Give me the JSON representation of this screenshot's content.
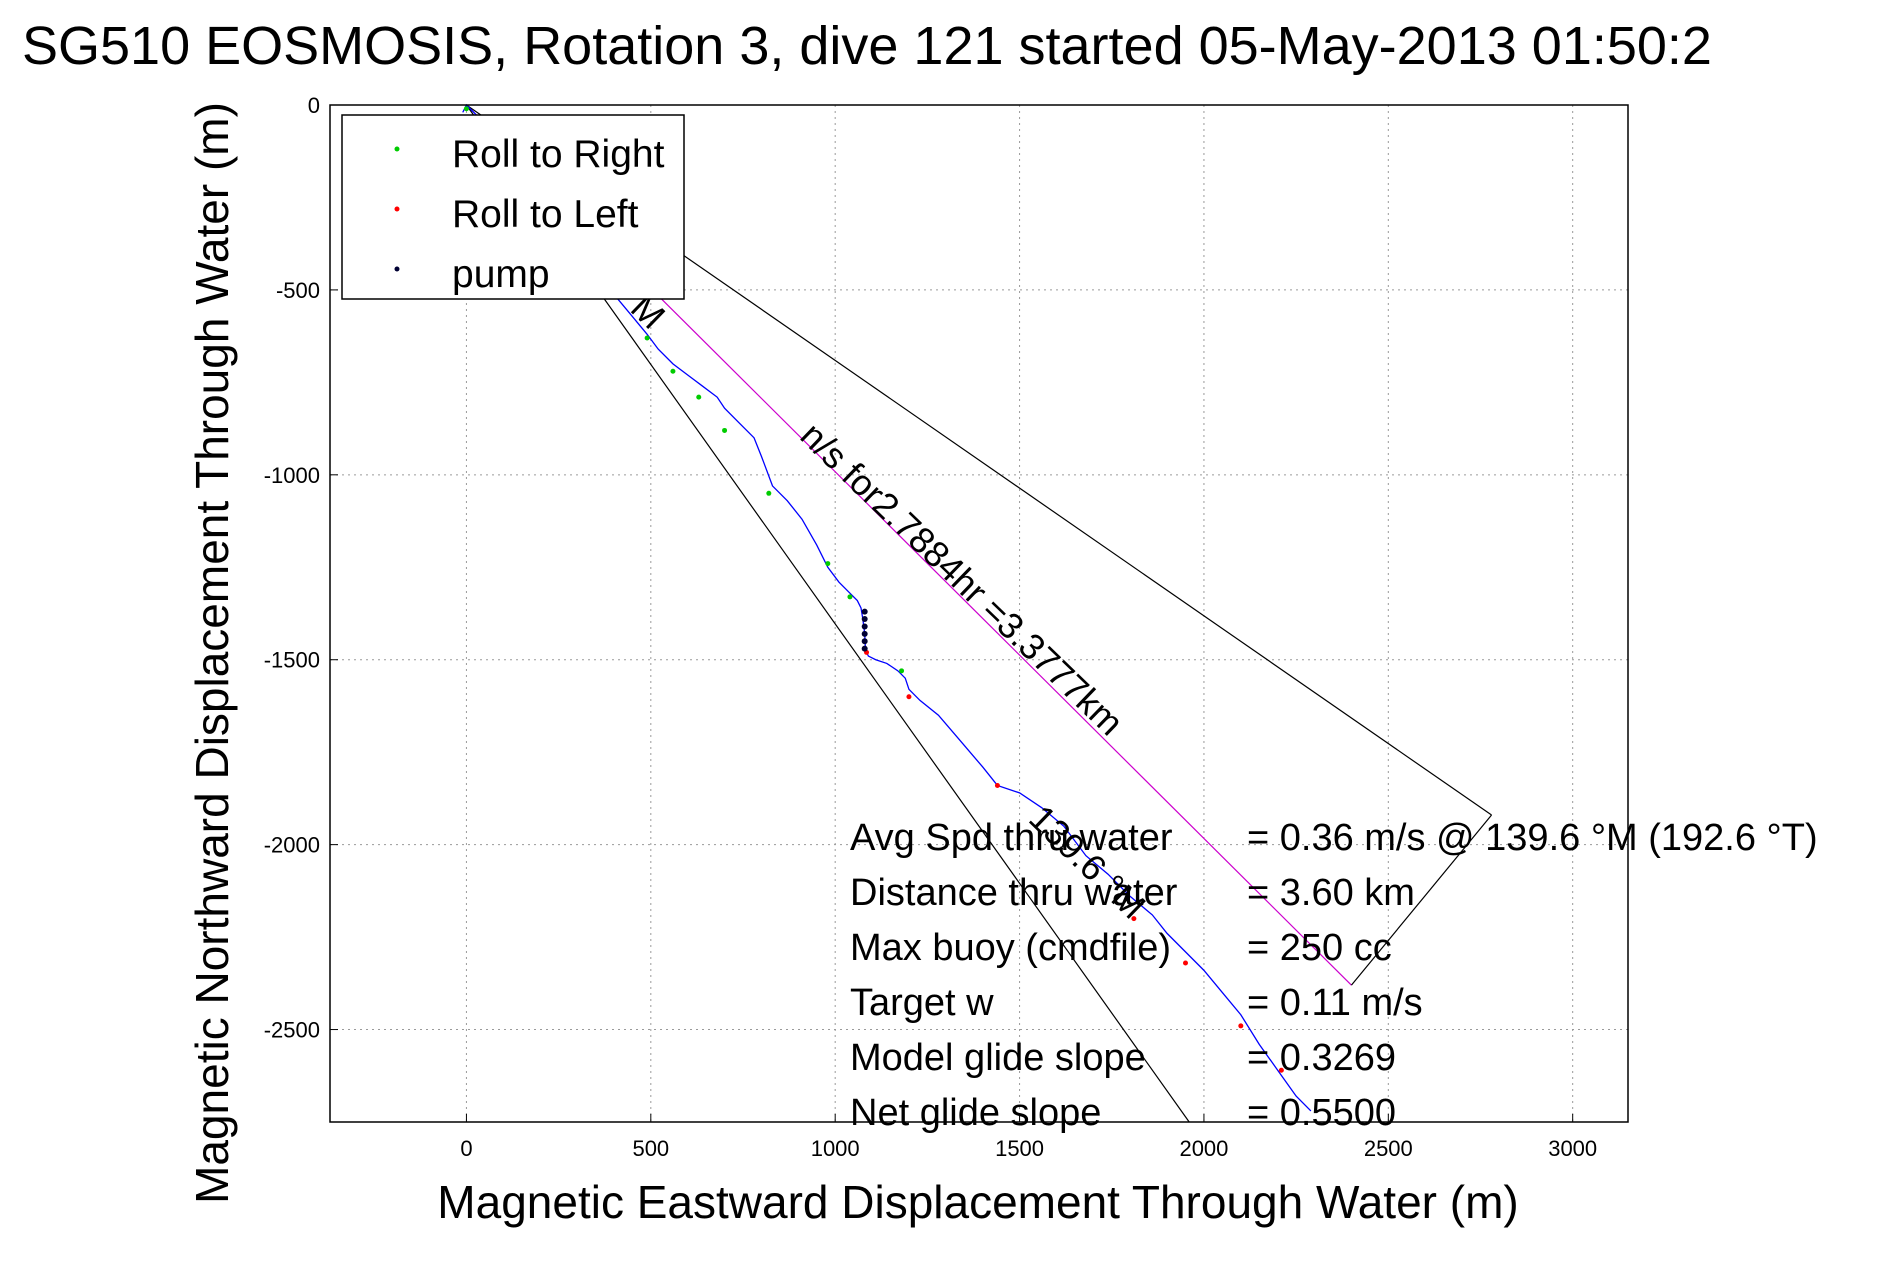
{
  "chart_data": {
    "type": "line",
    "title": "SG510 EOSMOSIS, Rotation 3, dive 121 started 05-May-2013 01:50:2",
    "xlabel": "Magnetic Eastward Displacement Through Water (m)",
    "ylabel": "Magnetic Northward Displacement Through Water (m)",
    "xlim": [
      -370,
      3150
    ],
    "ylim": [
      -2750,
      0
    ],
    "xticks": [
      0,
      500,
      1000,
      1500,
      2000,
      2500,
      3000
    ],
    "yticks": [
      0,
      -500,
      -1000,
      -1500,
      -2000,
      -2500
    ],
    "xtick_labels": [
      "0",
      "500",
      "1000",
      "1500",
      "2000",
      "2500",
      "3000"
    ],
    "ytick_labels": [
      "0",
      "-500",
      "-1000",
      "-1500",
      "-2000",
      "-2500"
    ],
    "grid": true,
    "legend": {
      "position": "top-left",
      "entries": [
        {
          "label": "Roll to Right",
          "color": "#00cc00"
        },
        {
          "label": "Roll to Left",
          "color": "#ff0000"
        },
        {
          "label": "pump",
          "color": "#000033"
        }
      ]
    },
    "track": {
      "color": "#0000ff",
      "x": [
        -10,
        0,
        60,
        120,
        180,
        250,
        320,
        390,
        440,
        490,
        520,
        560,
        600,
        640,
        680,
        700,
        740,
        780,
        800,
        830,
        870,
        910,
        950,
        980,
        1010,
        1040,
        1060,
        1070,
        1075,
        1080,
        1082,
        1085,
        1090,
        1110,
        1140,
        1170,
        1190,
        1200,
        1230,
        1280,
        1340,
        1400,
        1440,
        1500,
        1560,
        1620,
        1680,
        1740,
        1800,
        1860,
        1900,
        1950,
        2000,
        2050,
        2100,
        2150,
        2200,
        2250,
        2290
      ],
      "y": [
        -20,
        0,
        -60,
        -140,
        -230,
        -330,
        -420,
        -500,
        -560,
        -620,
        -660,
        -700,
        -730,
        -760,
        -790,
        -820,
        -860,
        -900,
        -950,
        -1030,
        -1070,
        -1120,
        -1190,
        -1250,
        -1290,
        -1320,
        -1340,
        -1360,
        -1390,
        -1430,
        -1470,
        -1480,
        -1490,
        -1500,
        -1510,
        -1530,
        -1550,
        -1580,
        -1610,
        -1650,
        -1720,
        -1790,
        -1840,
        -1860,
        -1900,
        -1950,
        -2030,
        -2080,
        -2140,
        -2190,
        -2240,
        -2290,
        -2340,
        -2400,
        -2460,
        -2540,
        -2610,
        -2680,
        -2720
      ]
    },
    "markers": [
      {
        "type": "right",
        "x": [
          0,
          490,
          560,
          630,
          700,
          820,
          980,
          1040,
          1180
        ],
        "y": [
          -10,
          -630,
          -720,
          -790,
          -880,
          -1050,
          -1240,
          -1330,
          -1530
        ]
      },
      {
        "type": "left",
        "x": [
          1085,
          1200,
          1440,
          1810,
          1950,
          2100,
          2210
        ],
        "y": [
          -1480,
          -1600,
          -1840,
          -2200,
          -2320,
          -2490,
          -2610
        ]
      },
      {
        "type": "pump",
        "x": [
          1080,
          1080,
          1080,
          1080,
          1080,
          1080
        ],
        "y": [
          -1370,
          -1390,
          -1410,
          -1430,
          -1450,
          -1470
        ]
      }
    ],
    "reference_lines": [
      {
        "color": "#cc00cc",
        "x": [
          0,
          2400
        ],
        "y": [
          0,
          -2380
        ]
      },
      {
        "color": "#000000",
        "x": [
          0,
          1960
        ],
        "y": [
          0,
          -2750
        ]
      },
      {
        "color": "#000000",
        "x": [
          0,
          2780
        ],
        "y": [
          0,
          -1920
        ]
      },
      {
        "color": "#000000",
        "x": [
          2780,
          2400
        ],
        "y": [
          -1920,
          -2380
        ]
      }
    ],
    "annotations": [
      {
        "text": "139.6 °M",
        "x": 1520,
        "y": -1935,
        "rotation": 44
      },
      {
        "text": "M",
        "x": 440,
        "y": -555,
        "rotation": 44
      },
      {
        "text": "n/s for2.7884hr =3.3777km",
        "x": 900,
        "y": -900,
        "rotation": 44
      }
    ],
    "stats": [
      {
        "label": "Avg Spd thru water",
        "value": "=  0.36 m/s @ 139.6 °M (192.6 °T)"
      },
      {
        "label": "Distance thru water",
        "value": "=  3.60 km"
      },
      {
        "label": "Max buoy (cmdfile)",
        "value": "= 250 cc"
      },
      {
        "label": "Target w",
        "value": "= 0.11 m/s"
      },
      {
        "label": "Model glide slope",
        "value": "= 0.3269"
      },
      {
        "label": "Net glide slope",
        "value": "= 0.5500"
      }
    ]
  }
}
